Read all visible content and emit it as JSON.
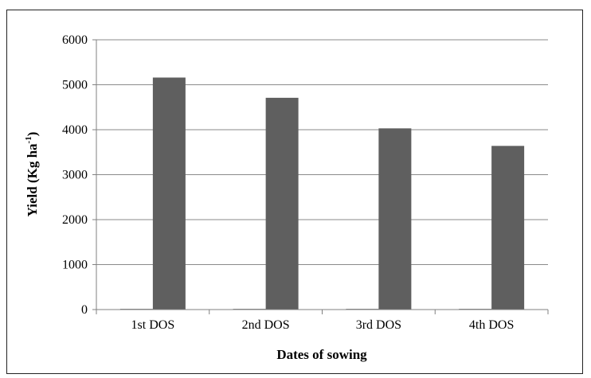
{
  "chart_data": {
    "type": "bar",
    "categories": [
      "1st DOS",
      "2nd DOS",
      "3rd DOS",
      "4th DOS"
    ],
    "series": [
      {
        "values": [
          0,
          0,
          0,
          0
        ],
        "color": "#8c8c8c"
      },
      {
        "values": [
          5160,
          4710,
          4030,
          3640
        ],
        "color": "#5f5f5f"
      }
    ],
    "xlabel": "Dates of sowing",
    "ylabel": {
      "main": "Yield (Kg ha",
      "sup": "-1",
      "close": ")"
    },
    "ylim": [
      0,
      6000
    ],
    "yticks": [
      0,
      1000,
      2000,
      3000,
      4000,
      5000,
      6000
    ],
    "grid": true,
    "legend": "none"
  }
}
